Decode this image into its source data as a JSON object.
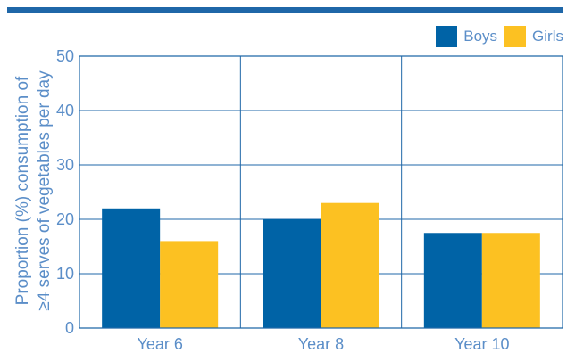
{
  "chart_data": {
    "type": "bar",
    "categories": [
      "Year 6",
      "Year 8",
      "Year 10"
    ],
    "series": [
      {
        "name": "Boys",
        "values": [
          22,
          20,
          17.5
        ],
        "color": "#0063a6"
      },
      {
        "name": "Girls",
        "values": [
          16,
          23,
          17.5
        ],
        "color": "#fcc122"
      }
    ],
    "ylabel_line1": "Proportion (%) consumption of",
    "ylabel_line2": "≥4 serves  of vegetables per day",
    "ylim": [
      0,
      50
    ],
    "yticks": [
      "0",
      "10",
      "20",
      "30",
      "40",
      "50"
    ],
    "grid": true,
    "legend_position": "top-right"
  }
}
